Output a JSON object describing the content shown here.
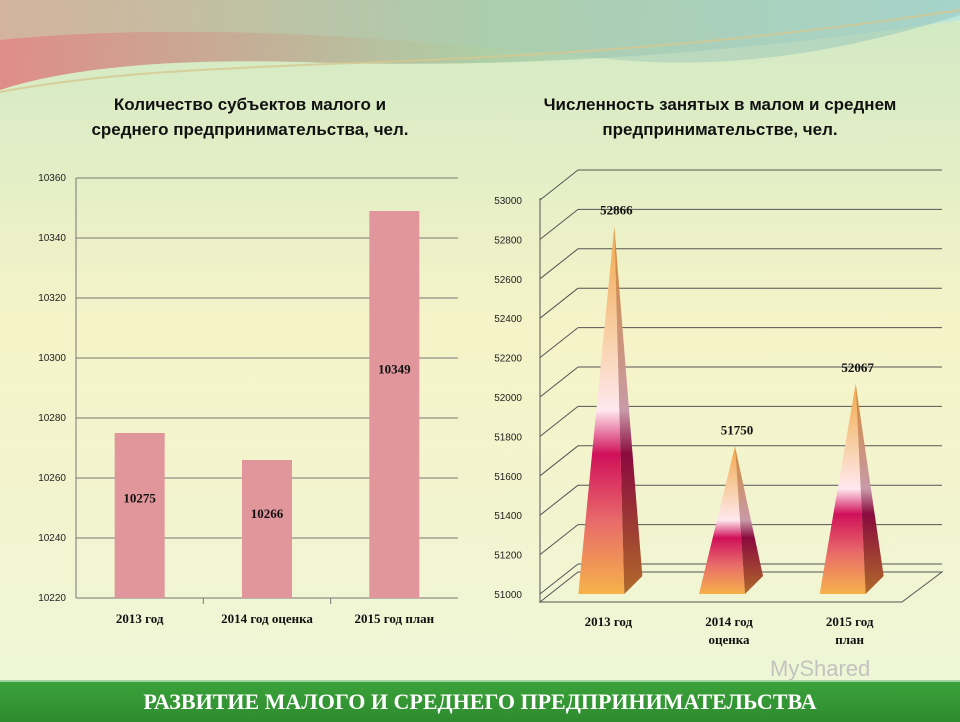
{
  "charts": {
    "left": {
      "title": "Количество субъектов малого и среднего предпринимательства, чел."
    },
    "right": {
      "title": "Численность занятых в малом и среднем предпринимательстве,  чел."
    }
  },
  "footer": {
    "text": "РАЗВИТИЕ МАЛОГО И СРЕДНЕГО ПРЕДПРИНИМАТЕЛЬСТВА"
  },
  "watermark": {
    "text": "MyShared"
  },
  "chart_data": [
    {
      "type": "bar",
      "title": "Количество субъектов малого и среднего предпринимательства, чел.",
      "categories": [
        "2013 год",
        "2014 год оценка",
        "2015 год план"
      ],
      "values": [
        10275,
        10266,
        10349
      ],
      "data_labels": [
        "10275",
        "10266",
        "10349"
      ],
      "ylim": [
        10220,
        10360
      ],
      "yticks": [
        10220,
        10240,
        10260,
        10280,
        10300,
        10320,
        10340,
        10360
      ],
      "grid": true,
      "bar_color": "#e0969a"
    },
    {
      "type": "bar",
      "title": "Численность занятых в малом и среднем предпринимательстве,  чел.",
      "categories": [
        "2013 год",
        "2014 год оценка",
        "2015 год план"
      ],
      "values": [
        52866,
        51750,
        52067
      ],
      "data_labels": [
        "52866",
        "51750",
        "52067"
      ],
      "ylim": [
        51000,
        53000
      ],
      "yticks": [
        51000,
        51200,
        51400,
        51600,
        51800,
        52000,
        52200,
        52400,
        52600,
        52800,
        53000
      ],
      "grid": true,
      "shape": "pyramid-3d"
    }
  ]
}
